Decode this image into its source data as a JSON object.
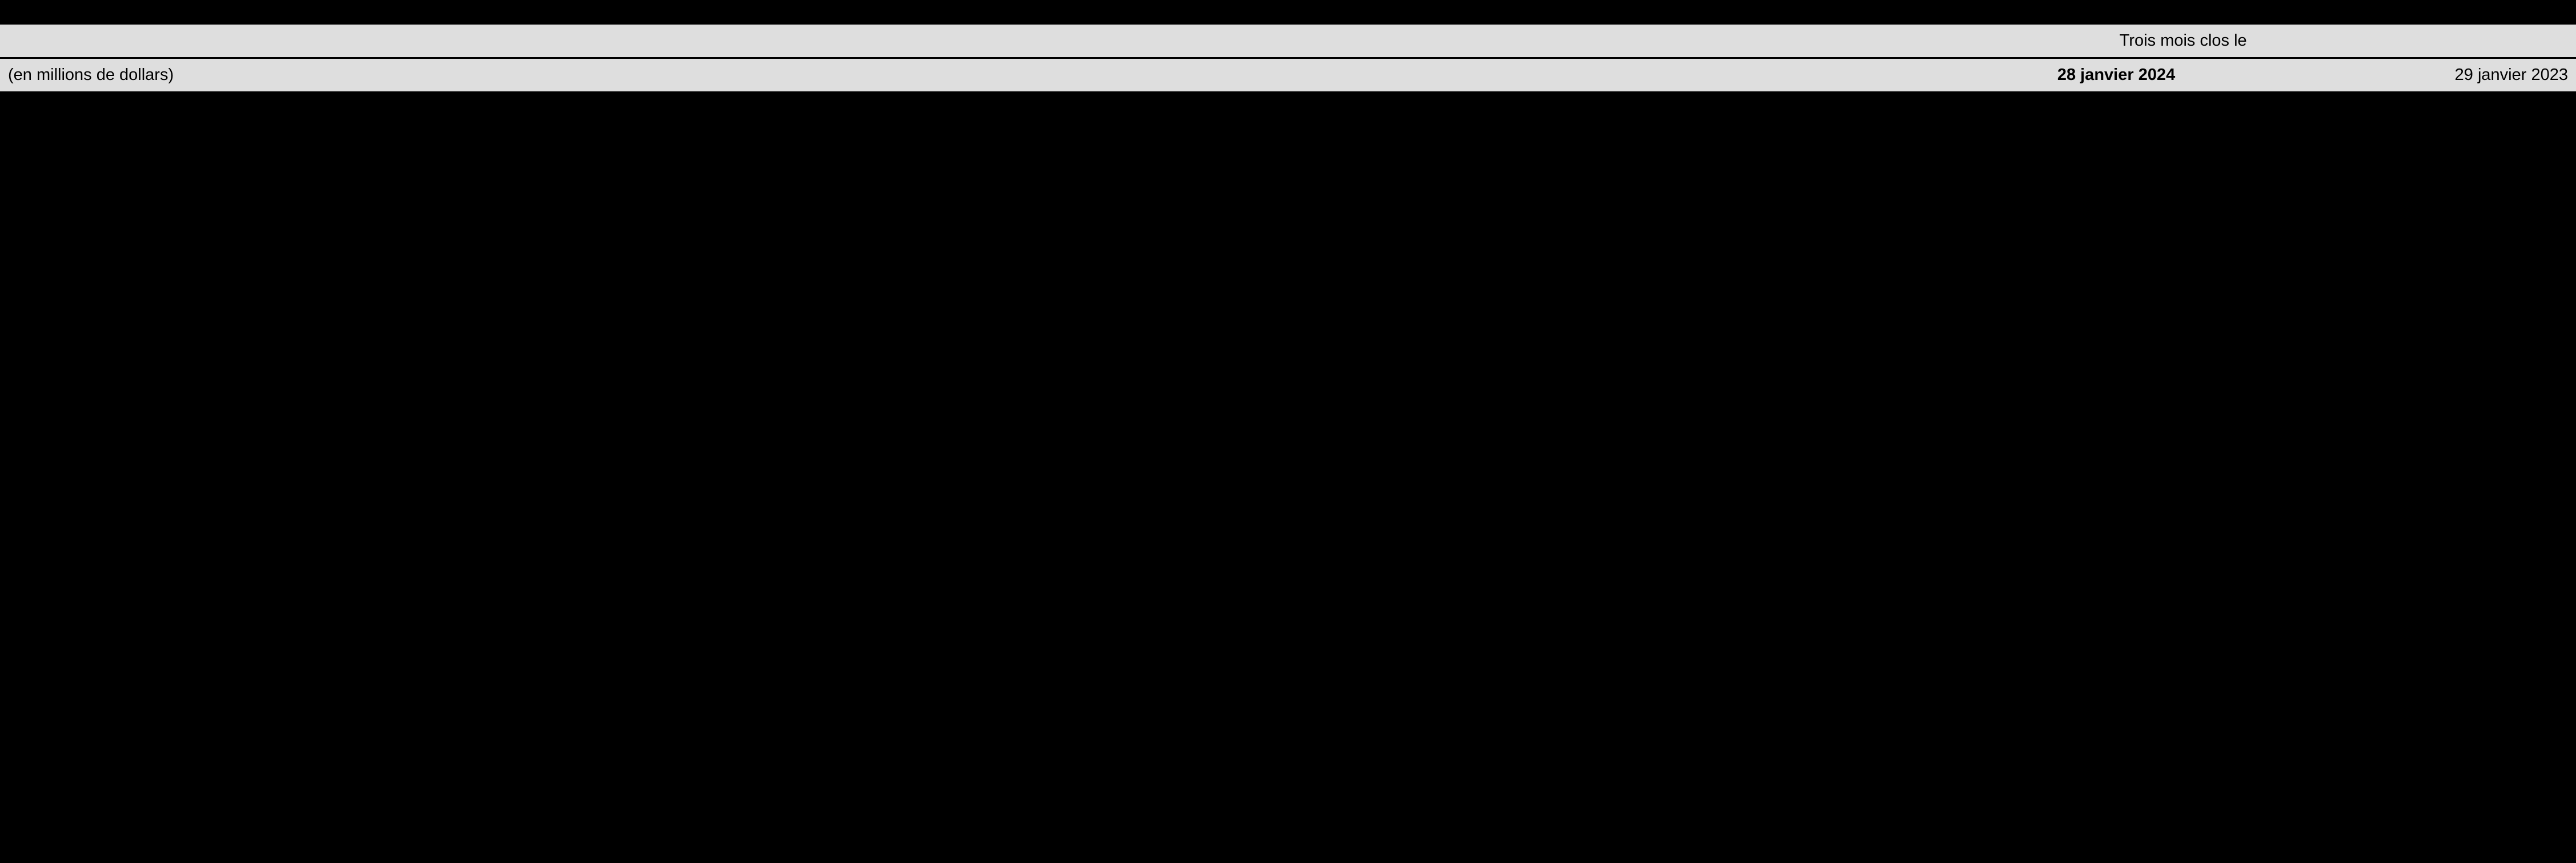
{
  "colors": {
    "page_background": "#000000",
    "header_background": "#dedede",
    "header_text": "#000000",
    "body_background": "#000000",
    "body_text": "#ffffff",
    "divider": "#000000"
  },
  "typography": {
    "font_family": "Arial",
    "header_fontsize_pt": 22,
    "body_fontsize_pt": 22,
    "bold_columns": [
      "2024"
    ]
  },
  "layout": {
    "column_widths_pct": [
      69.5,
      15.25,
      15.25
    ],
    "text_align": {
      "label": "left",
      "values": "right",
      "period_span": "center"
    }
  },
  "table": {
    "type": "table",
    "period_label": "Trois mois clos le",
    "unit_label": "(en millions de dollars)",
    "columns": [
      {
        "key": "2024",
        "label": "28 janvier 2024",
        "bold": true
      },
      {
        "key": "2023",
        "label": "29 janvier 2023",
        "bold": false
      }
    ],
    "rows": []
  }
}
